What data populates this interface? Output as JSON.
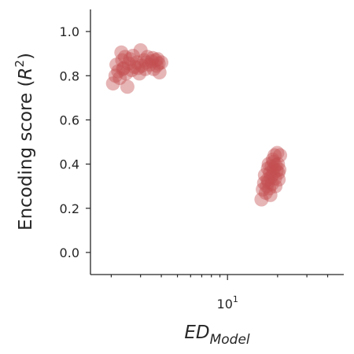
{
  "chart_data": {
    "type": "scatter",
    "title": "",
    "ylabel": {
      "prefix": "Encoding score (",
      "var": "R",
      "sup": "2",
      "suffix": ")"
    },
    "xlabel": {
      "main": "ED",
      "sub": "Model"
    },
    "xscale": "log",
    "xlim": [
      1.5,
      50
    ],
    "ylim": [
      -0.1,
      1.1
    ],
    "yticks": [
      {
        "v": 0.0,
        "label": "0.0"
      },
      {
        "v": 0.2,
        "label": "0.2"
      },
      {
        "v": 0.4,
        "label": "0.4"
      },
      {
        "v": 0.6,
        "label": "0.6"
      },
      {
        "v": 0.8,
        "label": "0.8"
      },
      {
        "v": 1.0,
        "label": "1.0"
      }
    ],
    "xticks_major": [
      {
        "v": 10,
        "base": "10",
        "exp": "1"
      }
    ],
    "xticks_minor": [
      2,
      3,
      4,
      5,
      6,
      7,
      8,
      9,
      20,
      30,
      40
    ],
    "marker_color": "#c44e52",
    "marker_alpha": 0.42,
    "grid": false,
    "legend": "none",
    "points": [
      {
        "x": 2.05,
        "y": 0.765
      },
      {
        "x": 2.12,
        "y": 0.8
      },
      {
        "x": 2.15,
        "y": 0.85
      },
      {
        "x": 2.2,
        "y": 0.82
      },
      {
        "x": 2.25,
        "y": 0.79
      },
      {
        "x": 2.3,
        "y": 0.905
      },
      {
        "x": 2.33,
        "y": 0.87
      },
      {
        "x": 2.38,
        "y": 0.835
      },
      {
        "x": 2.42,
        "y": 0.885
      },
      {
        "x": 2.45,
        "y": 0.81
      },
      {
        "x": 2.5,
        "y": 0.75
      },
      {
        "x": 2.55,
        "y": 0.855
      },
      {
        "x": 2.6,
        "y": 0.875
      },
      {
        "x": 2.65,
        "y": 0.825
      },
      {
        "x": 2.75,
        "y": 0.84
      },
      {
        "x": 2.85,
        "y": 0.86
      },
      {
        "x": 2.95,
        "y": 0.81
      },
      {
        "x": 3.0,
        "y": 0.915
      },
      {
        "x": 3.05,
        "y": 0.845
      },
      {
        "x": 3.15,
        "y": 0.87
      },
      {
        "x": 3.2,
        "y": 0.83
      },
      {
        "x": 3.3,
        "y": 0.885
      },
      {
        "x": 3.4,
        "y": 0.85
      },
      {
        "x": 3.5,
        "y": 0.865
      },
      {
        "x": 3.6,
        "y": 0.83
      },
      {
        "x": 3.7,
        "y": 0.87
      },
      {
        "x": 3.75,
        "y": 0.845
      },
      {
        "x": 3.8,
        "y": 0.875
      },
      {
        "x": 3.9,
        "y": 0.815
      },
      {
        "x": 4.0,
        "y": 0.86
      },
      {
        "x": 3.55,
        "y": 0.88
      },
      {
        "x": 3.25,
        "y": 0.86
      },
      {
        "x": 2.7,
        "y": 0.89
      },
      {
        "x": 2.35,
        "y": 0.83
      },
      {
        "x": 2.9,
        "y": 0.835
      },
      {
        "x": 3.85,
        "y": 0.855
      },
      {
        "x": 16.0,
        "y": 0.24
      },
      {
        "x": 16.3,
        "y": 0.285
      },
      {
        "x": 16.6,
        "y": 0.315
      },
      {
        "x": 16.8,
        "y": 0.35
      },
      {
        "x": 17.0,
        "y": 0.27
      },
      {
        "x": 17.2,
        "y": 0.3
      },
      {
        "x": 17.4,
        "y": 0.33
      },
      {
        "x": 17.5,
        "y": 0.38
      },
      {
        "x": 17.7,
        "y": 0.4
      },
      {
        "x": 17.8,
        "y": 0.29
      },
      {
        "x": 18.0,
        "y": 0.36
      },
      {
        "x": 18.2,
        "y": 0.34
      },
      {
        "x": 18.4,
        "y": 0.39
      },
      {
        "x": 18.5,
        "y": 0.31
      },
      {
        "x": 18.7,
        "y": 0.42
      },
      {
        "x": 18.8,
        "y": 0.355
      },
      {
        "x": 19.0,
        "y": 0.38
      },
      {
        "x": 19.2,
        "y": 0.44
      },
      {
        "x": 19.3,
        "y": 0.335
      },
      {
        "x": 19.5,
        "y": 0.395
      },
      {
        "x": 19.7,
        "y": 0.37
      },
      {
        "x": 19.9,
        "y": 0.45
      },
      {
        "x": 20.1,
        "y": 0.4
      },
      {
        "x": 20.3,
        "y": 0.33
      },
      {
        "x": 20.5,
        "y": 0.375
      },
      {
        "x": 20.7,
        "y": 0.44
      },
      {
        "x": 20.2,
        "y": 0.36
      },
      {
        "x": 18.1,
        "y": 0.26
      },
      {
        "x": 17.6,
        "y": 0.32
      },
      {
        "x": 19.4,
        "y": 0.3
      },
      {
        "x": 18.9,
        "y": 0.41
      }
    ]
  }
}
